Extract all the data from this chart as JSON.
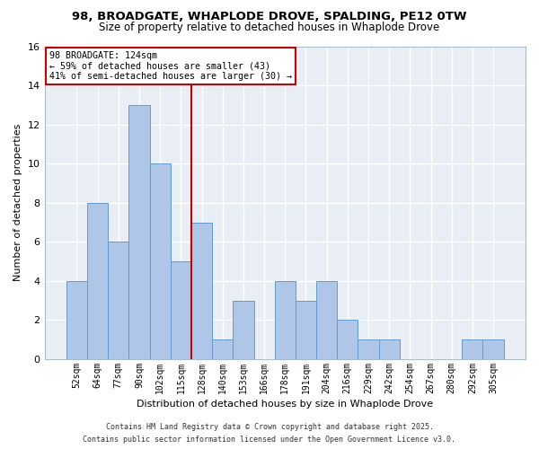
{
  "title_line1": "98, BROADGATE, WHAPLODE DROVE, SPALDING, PE12 0TW",
  "title_line2": "Size of property relative to detached houses in Whaplode Drove",
  "xlabel": "Distribution of detached houses by size in Whaplode Drove",
  "ylabel": "Number of detached properties",
  "bar_labels": [
    "52sqm",
    "64sqm",
    "77sqm",
    "90sqm",
    "102sqm",
    "115sqm",
    "128sqm",
    "140sqm",
    "153sqm",
    "166sqm",
    "178sqm",
    "191sqm",
    "204sqm",
    "216sqm",
    "229sqm",
    "242sqm",
    "254sqm",
    "267sqm",
    "280sqm",
    "292sqm",
    "305sqm"
  ],
  "bar_values": [
    4,
    8,
    6,
    13,
    10,
    5,
    7,
    1,
    3,
    0,
    4,
    3,
    4,
    2,
    1,
    1,
    0,
    0,
    0,
    1,
    1
  ],
  "bar_color": "#aec6e8",
  "bar_edge_color": "#6699cc",
  "vline_color": "#cc0000",
  "annotation_title": "98 BROADGATE: 124sqm",
  "annotation_line1": "← 59% of detached houses are smaller (43)",
  "annotation_line2": "41% of semi-detached houses are larger (30) →",
  "annotation_box_color": "#ffffff",
  "annotation_box_edge": "#cc0000",
  "ylim": [
    0,
    16
  ],
  "yticks": [
    0,
    2,
    4,
    6,
    8,
    10,
    12,
    14,
    16
  ],
  "background_color": "#ffffff",
  "plot_bg_color": "#e8eef4",
  "grid_color": "#ffffff",
  "footer_line1": "Contains HM Land Registry data © Crown copyright and database right 2025.",
  "footer_line2": "Contains public sector information licensed under the Open Government Licence v3.0."
}
